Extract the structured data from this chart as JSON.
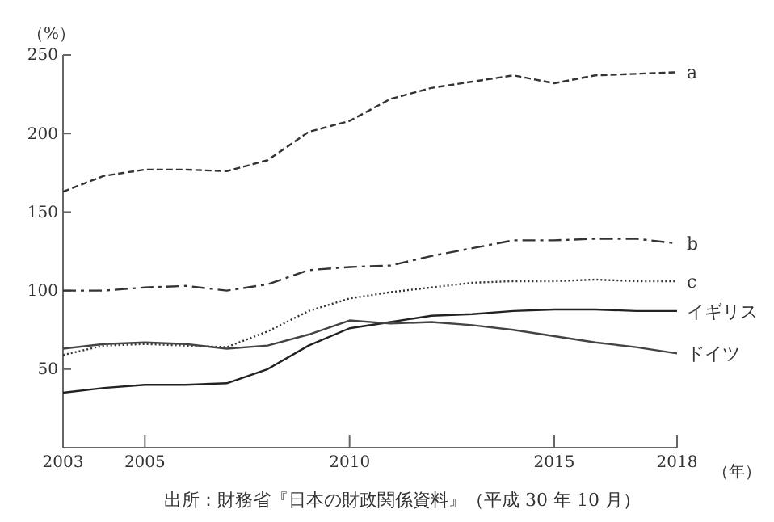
{
  "chart_data": {
    "type": "line",
    "ylabel": "（%）",
    "xlabel": "（年）",
    "annotations": [
      "出所：財務省『日本の財政関係資料』（平成 30 年 10 月）"
    ],
    "x": [
      2003,
      2004,
      2005,
      2006,
      2007,
      2008,
      2009,
      2010,
      2011,
      2012,
      2013,
      2014,
      2015,
      2016,
      2017,
      2018
    ],
    "xlim": [
      2003,
      2018
    ],
    "xticks": [
      2003,
      2005,
      2010,
      2015,
      2018
    ],
    "ylim": [
      0,
      250
    ],
    "yticks": [
      50,
      100,
      150,
      200,
      250
    ],
    "grid": false,
    "legend": false,
    "marker": "none",
    "series": [
      {
        "name": "a",
        "color": "#333333",
        "line_style": "dashed",
        "values": [
          163,
          173,
          177,
          177,
          176,
          183,
          201,
          208,
          222,
          229,
          233,
          237,
          232,
          237,
          238,
          239
        ]
      },
      {
        "name": "b",
        "color": "#333333",
        "line_style": "dashdot",
        "values": [
          100,
          100,
          102,
          103,
          100,
          104,
          113,
          115,
          116,
          122,
          127,
          132,
          132,
          133,
          133,
          130
        ]
      },
      {
        "name": "c",
        "color": "#333333",
        "line_style": "dotted",
        "values": [
          59,
          65,
          66,
          65,
          64,
          74,
          87,
          95,
          99,
          102,
          105,
          106,
          106,
          107,
          106,
          106
        ]
      },
      {
        "name": "イギリス",
        "color": "#222222",
        "line_style": "solid",
        "values": [
          35,
          38,
          40,
          40,
          41,
          50,
          65,
          76,
          80,
          84,
          85,
          87,
          88,
          88,
          87,
          87
        ]
      },
      {
        "name": "ドイツ",
        "color": "#444444",
        "line_style": "solid",
        "values": [
          63,
          66,
          67,
          66,
          63,
          65,
          72,
          81,
          79,
          80,
          78,
          75,
          71,
          67,
          64,
          60
        ]
      }
    ]
  }
}
